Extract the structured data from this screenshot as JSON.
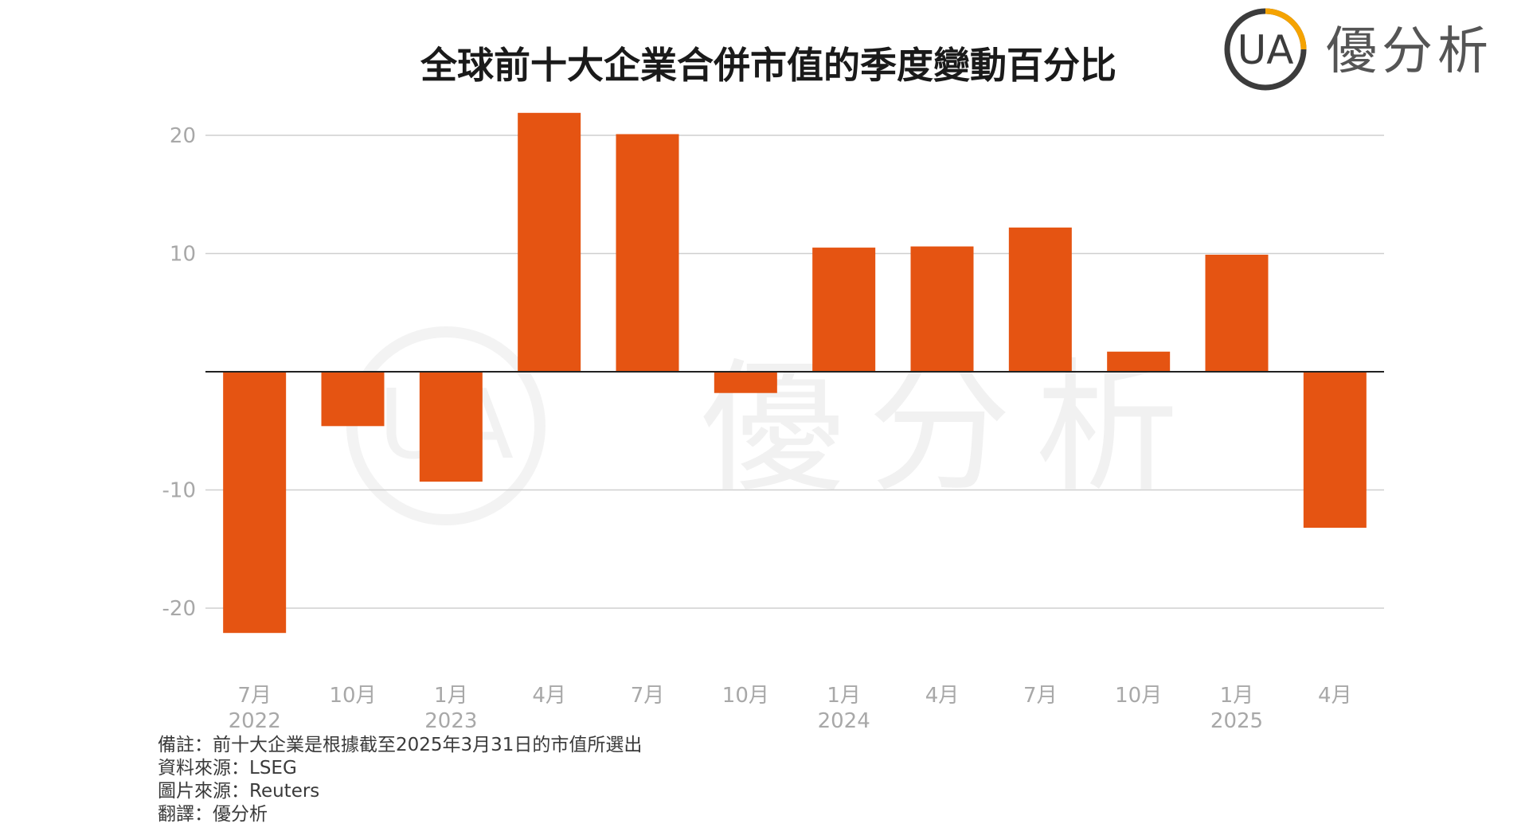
{
  "colors": {
    "bar": "#E55412",
    "logo_orange": "#F5A300",
    "logo_dark": "#3c3c3c"
  },
  "brand": {
    "logo_letters": "UA",
    "name": "優分析"
  },
  "watermark": {
    "logo_letters": "UA",
    "name": "優分析"
  },
  "chart_data": {
    "type": "bar",
    "title": "全球前十大企業合併市值的季度變動百分比",
    "xlabel": "",
    "ylabel": "",
    "ylim": [
      -25,
      22
    ],
    "yticks": [
      20,
      10,
      -10,
      -20
    ],
    "ytick_labels": [
      "20",
      "10",
      "-10",
      "-20"
    ],
    "grid": true,
    "categories": [
      "2022-07",
      "2022-10",
      "2023-01",
      "2023-04",
      "2023-07",
      "2023-10",
      "2024-01",
      "2024-04",
      "2024-07",
      "2024-10",
      "2025-01",
      "2025-04"
    ],
    "tick_labels": [
      {
        "month": "7月",
        "year": "2022"
      },
      {
        "month": "10月",
        "year": ""
      },
      {
        "month": "1月",
        "year": "2023"
      },
      {
        "month": "4月",
        "year": ""
      },
      {
        "month": "7月",
        "year": ""
      },
      {
        "month": "10月",
        "year": ""
      },
      {
        "month": "1月",
        "year": "2024"
      },
      {
        "month": "4月",
        "year": ""
      },
      {
        "month": "7月",
        "year": ""
      },
      {
        "month": "10月",
        "year": ""
      },
      {
        "month": "1月",
        "year": "2025"
      },
      {
        "month": "4月",
        "year": ""
      }
    ],
    "values": [
      -22.1,
      -4.6,
      -9.3,
      21.9,
      20.1,
      -1.8,
      10.5,
      10.6,
      12.2,
      1.7,
      9.9,
      -13.2
    ]
  },
  "notes": [
    "備註：前十大企業是根據截至2025年3月31日的市值所選出",
    "資料來源：LSEG",
    "圖片來源：Reuters",
    "翻譯：優分析"
  ]
}
